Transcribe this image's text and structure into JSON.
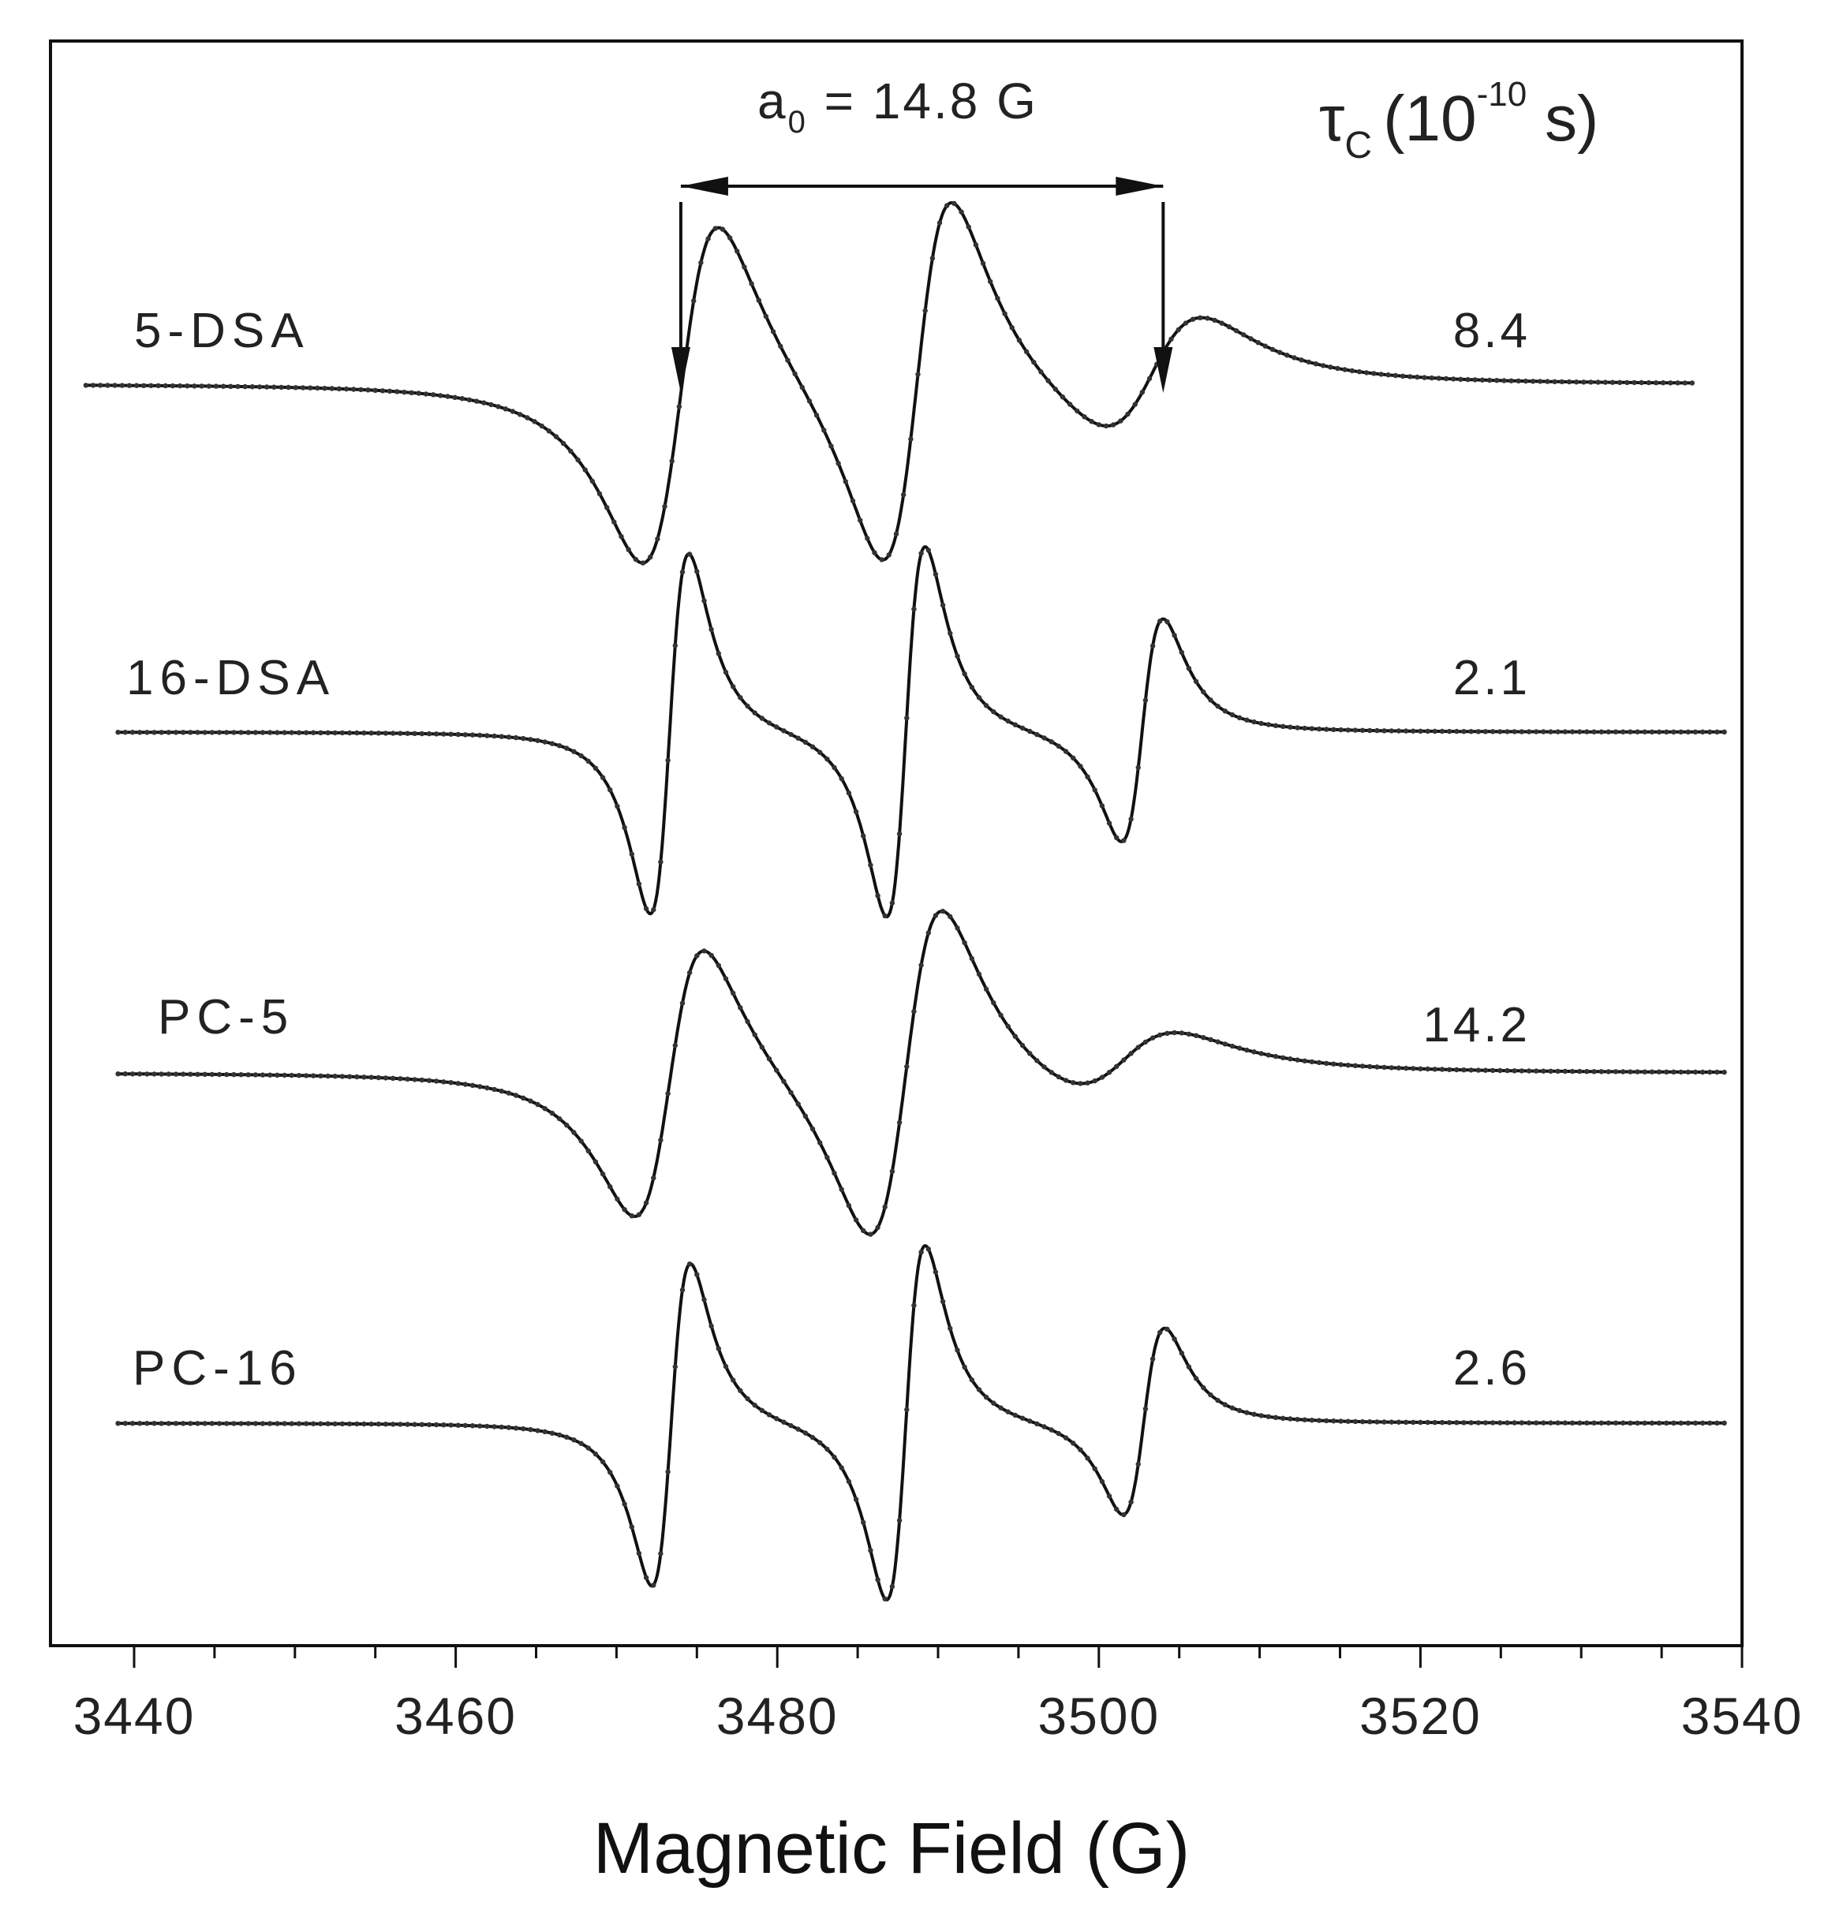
{
  "chart_data": {
    "type": "line",
    "xlabel": "Magnetic Field (G)",
    "ylabel": "",
    "xlim": [
      3435,
      3540
    ],
    "xticks": [
      3440,
      3460,
      3480,
      3500,
      3520,
      3540
    ],
    "grid": false,
    "legend": "none",
    "column_header": {
      "symbol": "τ",
      "subscript": "C",
      "text": "(10",
      "exponent": "-10",
      "unit": " s)"
    },
    "annotation": {
      "symbol": "a",
      "subscript": "0",
      "text": " = 14.8 G",
      "x_from": 3474,
      "x_to": 3504
    },
    "series": [
      {
        "name": "5-DSA",
        "tau_c": "8.4",
        "x_range": [
          3437,
          3537
        ],
        "lines": [
          {
            "center": 3474.0,
            "width": 2.4,
            "amplitude": 1.0
          },
          {
            "center": 3488.7,
            "width": 2.2,
            "amplitude": 1.08
          },
          {
            "center": 3503.3,
            "width": 3.2,
            "amplitude": 0.35
          }
        ]
      },
      {
        "name": "16-DSA",
        "tau_c": "2.1",
        "x_range": [
          3439,
          3539
        ],
        "lines": [
          {
            "center": 3473.3,
            "width": 1.2,
            "amplitude": 1.0
          },
          {
            "center": 3488.0,
            "width": 1.2,
            "amplitude": 1.03
          },
          {
            "center": 3502.7,
            "width": 1.3,
            "amplitude": 0.62
          }
        ]
      },
      {
        "name": "PC-5",
        "tau_c": "14.2",
        "x_range": [
          3439,
          3539
        ],
        "lines": [
          {
            "center": 3473.3,
            "width": 2.2,
            "amplitude": 0.9
          },
          {
            "center": 3488.0,
            "width": 2.3,
            "amplitude": 1.1
          },
          {
            "center": 3501.5,
            "width": 3.5,
            "amplitude": 0.22
          }
        ]
      },
      {
        "name": "PC-16",
        "tau_c": "2.6",
        "x_range": [
          3439,
          3539
        ],
        "lines": [
          {
            "center": 3473.4,
            "width": 1.2,
            "amplitude": 1.0
          },
          {
            "center": 3488.0,
            "width": 1.2,
            "amplitude": 1.1
          },
          {
            "center": 3502.8,
            "width": 1.3,
            "amplitude": 0.58
          }
        ]
      }
    ]
  }
}
